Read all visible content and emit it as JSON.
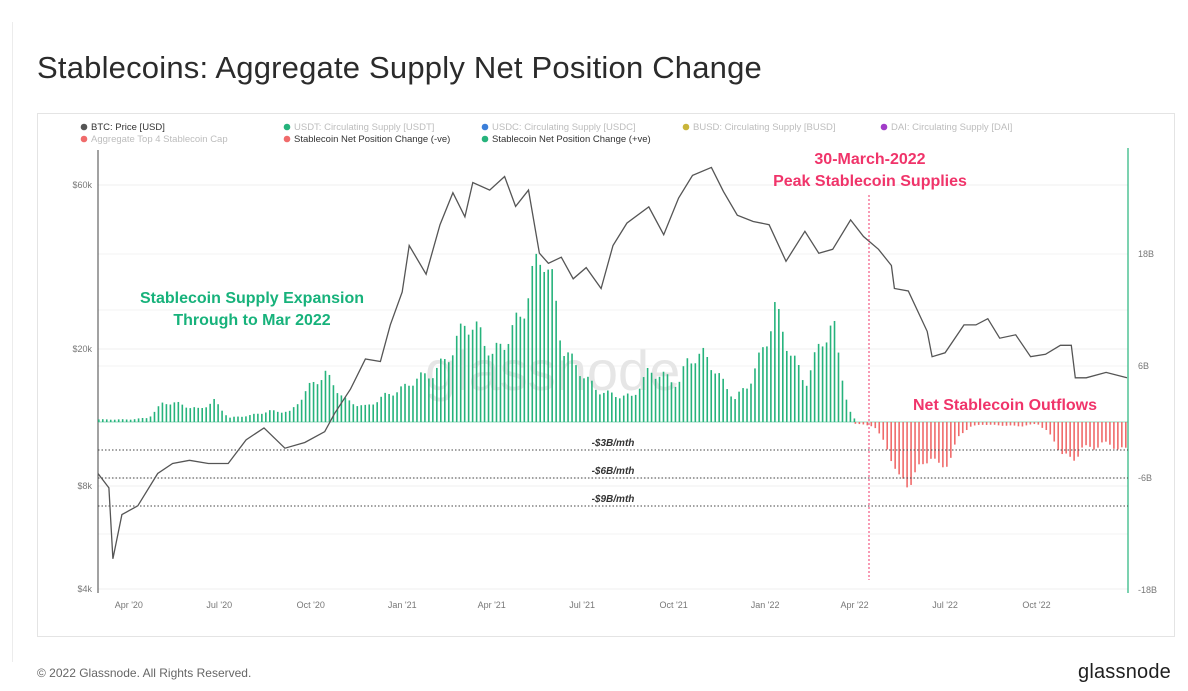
{
  "title": "Stablecoins: Aggregate Supply Net Position Change",
  "footer": {
    "copyright": "© 2022 Glassnode. All Rights Reserved.",
    "logo": "glassnode"
  },
  "chart_data": {
    "type": "bar",
    "legend": [
      {
        "label": "BTC: Price [USD]",
        "color": "#555555",
        "active": true
      },
      {
        "label": "USDT: Circulating Supply [USDT]",
        "color": "#26b37c",
        "active": false
      },
      {
        "label": "USDC: Circulating Supply [USDC]",
        "color": "#3b7fd9",
        "active": false
      },
      {
        "label": "BUSD: Circulating Supply [BUSD]",
        "color": "#c9b53a",
        "active": false
      },
      {
        "label": "DAI: Circulating Supply [DAI]",
        "color": "#a13cc8",
        "active": false
      },
      {
        "label": "Aggregate Top 4 Stablecoin Cap",
        "color": "#f06b6b",
        "active": false
      },
      {
        "label": "Stablecoin Net Position Change (-ve)",
        "color": "#f06b6b",
        "active": true
      },
      {
        "label": "Stablecoin Net Position Change (+ve)",
        "color": "#26b37c",
        "active": true
      }
    ],
    "x_ticks": [
      "Apr '20",
      "Jul '20",
      "Oct '20",
      "Jan '21",
      "Apr '21",
      "Jul '21",
      "Oct '21",
      "Jan '22",
      "Apr '22",
      "Jul '22",
      "Oct '22"
    ],
    "left_axis": {
      "ticks": [
        "$60k",
        "$20k",
        "$8k",
        "$4k"
      ],
      "tick_values": [
        60000,
        20000,
        8000,
        4000
      ],
      "scale": "log"
    },
    "right_axis": {
      "ticks": [
        "18B",
        "6B",
        "-6B",
        "-18B"
      ],
      "tick_values": [
        18,
        6,
        -6,
        -18
      ],
      "ylim": [
        -18,
        24
      ]
    },
    "annotations": {
      "expansion": [
        "Stablecoin Supply Expansion",
        "Through to Mar 2022"
      ],
      "peak": [
        "30-March-2022",
        "Peak Stablecoin Supplies"
      ],
      "outflows": "Net Stablecoin Outflows",
      "thresholds": [
        "-$3B/mth",
        "-$6B/mth",
        "-$9B/mth"
      ]
    },
    "threshold_values": [
      -3,
      -6,
      -9
    ],
    "series": [
      {
        "name": "BTC: Price [USD]",
        "x": [
          "2020-03-01",
          "2020-03-12",
          "2020-03-16",
          "2020-03-25",
          "2020-04-10",
          "2020-04-30",
          "2020-05-15",
          "2020-06-01",
          "2020-06-20",
          "2020-07-10",
          "2020-07-28",
          "2020-08-15",
          "2020-09-05",
          "2020-09-25",
          "2020-10-15",
          "2020-10-25",
          "2020-11-10",
          "2020-11-25",
          "2020-12-10",
          "2020-12-20",
          "2021-01-01",
          "2021-01-08",
          "2021-01-25",
          "2021-02-08",
          "2021-02-21",
          "2021-03-05",
          "2021-03-13",
          "2021-03-30",
          "2021-04-14",
          "2021-04-25",
          "2021-05-08",
          "2021-05-19",
          "2021-05-28",
          "2021-06-10",
          "2021-06-22",
          "2021-07-05",
          "2021-07-20",
          "2021-08-01",
          "2021-08-15",
          "2021-09-06",
          "2021-09-21",
          "2021-10-06",
          "2021-10-20",
          "2021-11-08",
          "2021-11-20",
          "2021-12-04",
          "2021-12-20",
          "2022-01-05",
          "2022-01-22",
          "2022-02-10",
          "2022-02-24",
          "2022-03-10",
          "2022-03-28",
          "2022-04-10",
          "2022-04-25",
          "2022-05-08",
          "2022-05-11",
          "2022-05-25",
          "2022-06-13",
          "2022-06-18",
          "2022-07-01",
          "2022-07-20",
          "2022-08-01",
          "2022-08-13",
          "2022-08-25",
          "2022-09-10",
          "2022-09-25",
          "2022-10-10",
          "2022-10-25",
          "2022-11-05",
          "2022-11-09",
          "2022-11-20",
          "2022-12-10",
          "2022-12-31"
        ],
        "values": [
          8700,
          7900,
          4900,
          6600,
          7000,
          8700,
          9300,
          9500,
          9300,
          9300,
          10900,
          11800,
          10300,
          10700,
          11500,
          13000,
          15300,
          18700,
          18400,
          23500,
          29300,
          40000,
          33000,
          46000,
          57000,
          48500,
          61000,
          58000,
          63500,
          52000,
          58000,
          38000,
          35500,
          37000,
          32000,
          34500,
          30000,
          40000,
          46500,
          51800,
          43000,
          55000,
          64000,
          67500,
          57500,
          49000,
          47000,
          46000,
          36000,
          44000,
          38000,
          39000,
          47500,
          42500,
          39000,
          35000,
          30000,
          29500,
          22500,
          19000,
          19500,
          23500,
          23500,
          24500,
          21500,
          22000,
          19000,
          19300,
          20500,
          20500,
          16500,
          16500,
          17100,
          16500
        ]
      },
      {
        "name": "Stablecoin Net Position Change (+ve)",
        "x": [
          "2020-03-01",
          "2020-04-01",
          "2020-04-20",
          "2020-05-05",
          "2020-05-15",
          "2020-06-10",
          "2020-06-25",
          "2020-07-10",
          "2020-08-01",
          "2020-08-20",
          "2020-09-10",
          "2020-10-01",
          "2020-10-15",
          "2020-11-05",
          "2020-11-25",
          "2020-12-15",
          "2021-01-01",
          "2021-01-15",
          "2021-02-01",
          "2021-02-20",
          "2021-03-05",
          "2021-03-20",
          "2021-04-01",
          "2021-04-15",
          "2021-05-01",
          "2021-05-12",
          "2021-05-22",
          "2021-06-01",
          "2021-06-10",
          "2021-06-25",
          "2021-07-15",
          "2021-08-01",
          "2021-08-20",
          "2021-09-05",
          "2021-09-20",
          "2021-10-05",
          "2021-10-15",
          "2021-11-01",
          "2021-11-20",
          "2021-12-01",
          "2021-12-15",
          "2022-01-01",
          "2022-01-10",
          "2022-01-25",
          "2022-02-10",
          "2022-02-25",
          "2022-03-10",
          "2022-03-25",
          "2022-04-01"
        ],
        "values": [
          0.3,
          0.3,
          0.5,
          2.3,
          2.3,
          1.5,
          2.5,
          0.5,
          0.8,
          1.3,
          1.2,
          4.5,
          5.7,
          2.5,
          1.8,
          3.2,
          4.0,
          5.2,
          5.8,
          8.5,
          12.0,
          10.5,
          8.0,
          9.7,
          13.0,
          17.5,
          20.5,
          16.0,
          9.0,
          6.5,
          3.8,
          3.2,
          3.0,
          6.0,
          5.5,
          4.5,
          7.5,
          8.0,
          4.5,
          2.8,
          4.5,
          9.5,
          13.5,
          8.5,
          4.5,
          9.5,
          11.5,
          1.5,
          0.2
        ]
      },
      {
        "name": "Stablecoin Net Position Change (-ve)",
        "x": [
          "2022-04-01",
          "2022-04-20",
          "2022-05-05",
          "2022-05-15",
          "2022-05-25",
          "2022-06-05",
          "2022-06-15",
          "2022-06-25",
          "2022-07-05",
          "2022-07-15",
          "2022-07-25",
          "2022-08-05",
          "2022-08-25",
          "2022-09-15",
          "2022-10-01",
          "2022-10-10",
          "2022-10-25",
          "2022-11-05",
          "2022-11-15",
          "2022-11-25",
          "2022-12-05",
          "2022-12-20",
          "2022-12-31"
        ],
        "values": [
          -0.2,
          -0.5,
          -3.5,
          -7.0,
          -7.2,
          -5.5,
          -4.0,
          -5.5,
          -4.5,
          -1.5,
          -0.6,
          -0.3,
          -0.4,
          -0.5,
          -0.2,
          -1.0,
          -3.5,
          -4.8,
          -3.0,
          -3.2,
          -2.5,
          -3.0,
          -3.5
        ]
      }
    ]
  }
}
